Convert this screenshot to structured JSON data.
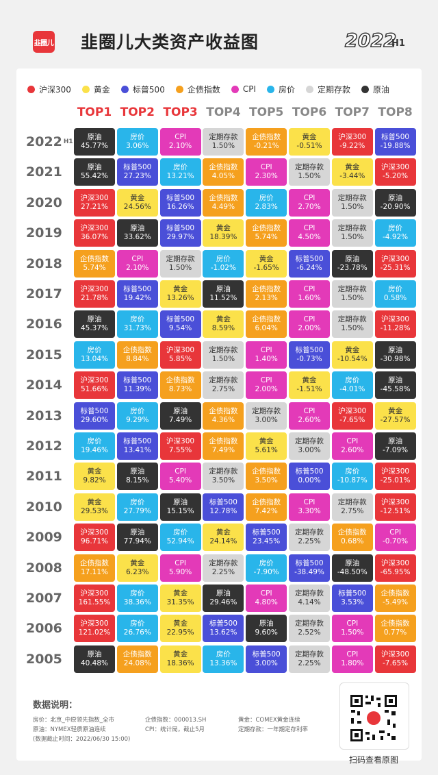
{
  "header": {
    "logo_text": "韭圈儿",
    "title": "韭圈儿大类资产收益图",
    "year": "2022",
    "period": "H1"
  },
  "legend": [
    {
      "name": "沪深300",
      "color": "#e8363a"
    },
    {
      "name": "黄金",
      "color": "#fbe14a"
    },
    {
      "name": "标普500",
      "color": "#4a4fd8"
    },
    {
      "name": "企债指数",
      "color": "#f5a01e"
    },
    {
      "name": "CPI",
      "color": "#e33ab8"
    },
    {
      "name": "房价",
      "color": "#29b5ea"
    },
    {
      "name": "定期存款",
      "color": "#d6d6d6"
    },
    {
      "name": "原油",
      "color": "#333333"
    }
  ],
  "chart_data": {
    "type": "table",
    "title": "韭圈儿大类资产收益图",
    "columns": [
      "TOP1",
      "TOP2",
      "TOP3",
      "TOP4",
      "TOP5",
      "TOP6",
      "TOP7",
      "TOP8"
    ],
    "rows": [
      {
        "year": "2022",
        "suffix": "H1",
        "cells": [
          [
            "原油",
            "45.77%"
          ],
          [
            "房价",
            "3.06%"
          ],
          [
            "CPI",
            "2.10%"
          ],
          [
            "定期存款",
            "1.50%"
          ],
          [
            "企债指数",
            "-0.21%"
          ],
          [
            "黄金",
            "-0.51%"
          ],
          [
            "沪深300",
            "-9.22%"
          ],
          [
            "标普500",
            "-19.88%"
          ]
        ]
      },
      {
        "year": "2021",
        "suffix": "",
        "cells": [
          [
            "原油",
            "55.42%"
          ],
          [
            "标普500",
            "27.23%"
          ],
          [
            "房价",
            "13.21%"
          ],
          [
            "企债指数",
            "4.05%"
          ],
          [
            "CPI",
            "2.30%"
          ],
          [
            "定期存款",
            "1.50%"
          ],
          [
            "黄金",
            "-3.44%"
          ],
          [
            "沪深300",
            "-5.20%"
          ]
        ]
      },
      {
        "year": "2020",
        "suffix": "",
        "cells": [
          [
            "沪深300",
            "27.21%"
          ],
          [
            "黄金",
            "24.56%"
          ],
          [
            "标普500",
            "16.26%"
          ],
          [
            "企债指数",
            "4.49%"
          ],
          [
            "房价",
            "2.83%"
          ],
          [
            "CPI",
            "2.70%"
          ],
          [
            "定期存款",
            "1.50%"
          ],
          [
            "原油",
            "-20.90%"
          ]
        ]
      },
      {
        "year": "2019",
        "suffix": "",
        "cells": [
          [
            "沪深300",
            "36.07%"
          ],
          [
            "原油",
            "33.62%"
          ],
          [
            "标普500",
            "29.97%"
          ],
          [
            "黄金",
            "18.39%"
          ],
          [
            "企债指数",
            "5.74%"
          ],
          [
            "CPI",
            "4.50%"
          ],
          [
            "定期存款",
            "1.50%"
          ],
          [
            "房价",
            "-4.92%"
          ]
        ]
      },
      {
        "year": "2018",
        "suffix": "",
        "cells": [
          [
            "企债指数",
            "5.74%"
          ],
          [
            "CPI",
            "2.10%"
          ],
          [
            "定期存款",
            "1.50%"
          ],
          [
            "房价",
            "-1.02%"
          ],
          [
            "黄金",
            "-1.65%"
          ],
          [
            "标普500",
            "-6.24%"
          ],
          [
            "原油",
            "-23.78%"
          ],
          [
            "沪深300",
            "-25.31%"
          ]
        ]
      },
      {
        "year": "2017",
        "suffix": "",
        "cells": [
          [
            "沪深300",
            "21.78%"
          ],
          [
            "标普500",
            "19.42%"
          ],
          [
            "黄金",
            "13.26%"
          ],
          [
            "原油",
            "11.52%"
          ],
          [
            "企债指数",
            "2.13%"
          ],
          [
            "CPI",
            "1.60%"
          ],
          [
            "定期存款",
            "1.50%"
          ],
          [
            "房价",
            "0.58%"
          ]
        ]
      },
      {
        "year": "2016",
        "suffix": "",
        "cells": [
          [
            "原油",
            "45.37%"
          ],
          [
            "房价",
            "31.73%"
          ],
          [
            "标普500",
            "9.54%"
          ],
          [
            "黄金",
            "8.59%"
          ],
          [
            "企债指数",
            "6.04%"
          ],
          [
            "CPI",
            "2.00%"
          ],
          [
            "定期存款",
            "1.50%"
          ],
          [
            "沪深300",
            "-11.28%"
          ]
        ]
      },
      {
        "year": "2015",
        "suffix": "",
        "cells": [
          [
            "房价",
            "13.04%"
          ],
          [
            "企债指数",
            "8.84%"
          ],
          [
            "沪深300",
            "5.85%"
          ],
          [
            "定期存款",
            "1.50%"
          ],
          [
            "CPI",
            "1.40%"
          ],
          [
            "标普500",
            "-0.73%"
          ],
          [
            "黄金",
            "-10.54%"
          ],
          [
            "原油",
            "-30.98%"
          ]
        ]
      },
      {
        "year": "2014",
        "suffix": "",
        "cells": [
          [
            "沪深300",
            "51.66%"
          ],
          [
            "标普500",
            "11.39%"
          ],
          [
            "企债指数",
            "8.73%"
          ],
          [
            "定期存款",
            "2.75%"
          ],
          [
            "CPI",
            "2.00%"
          ],
          [
            "黄金",
            "-1.51%"
          ],
          [
            "房价",
            "-4.01%"
          ],
          [
            "原油",
            "-45.58%"
          ]
        ]
      },
      {
        "year": "2013",
        "suffix": "",
        "cells": [
          [
            "标普500",
            "29.60%"
          ],
          [
            "房价",
            "9.29%"
          ],
          [
            "原油",
            "7.49%"
          ],
          [
            "企债指数",
            "4.36%"
          ],
          [
            "定期存款",
            "3.00%"
          ],
          [
            "CPI",
            "2.60%"
          ],
          [
            "沪深300",
            "-7.65%"
          ],
          [
            "黄金",
            "-27.57%"
          ]
        ]
      },
      {
        "year": "2012",
        "suffix": "",
        "cells": [
          [
            "房价",
            "19.46%"
          ],
          [
            "标普500",
            "13.41%"
          ],
          [
            "沪深300",
            "7.55%"
          ],
          [
            "企债指数",
            "7.49%"
          ],
          [
            "黄金",
            "5.61%"
          ],
          [
            "定期存款",
            "3.00%"
          ],
          [
            "CPI",
            "2.60%"
          ],
          [
            "原油",
            "-7.09%"
          ]
        ]
      },
      {
        "year": "2011",
        "suffix": "",
        "cells": [
          [
            "黄金",
            "9.82%"
          ],
          [
            "原油",
            "8.15%"
          ],
          [
            "CPI",
            "5.40%"
          ],
          [
            "定期存款",
            "3.50%"
          ],
          [
            "企债指数",
            "3.50%"
          ],
          [
            "标普500",
            "0.00%"
          ],
          [
            "房价",
            "-10.87%"
          ],
          [
            "沪深300",
            "-25.01%"
          ]
        ]
      },
      {
        "year": "2010",
        "suffix": "",
        "cells": [
          [
            "黄金",
            "29.53%"
          ],
          [
            "房价",
            "27.79%"
          ],
          [
            "原油",
            "15.15%"
          ],
          [
            "标普500",
            "12.78%"
          ],
          [
            "企债指数",
            "7.42%"
          ],
          [
            "CPI",
            "3.30%"
          ],
          [
            "定期存款",
            "2.75%"
          ],
          [
            "沪深300",
            "-12.51%"
          ]
        ]
      },
      {
        "year": "2009",
        "suffix": "",
        "cells": [
          [
            "沪深300",
            "96.71%"
          ],
          [
            "原油",
            "77.94%"
          ],
          [
            "房价",
            "52.94%"
          ],
          [
            "黄金",
            "24.14%"
          ],
          [
            "标普500",
            "23.45%"
          ],
          [
            "定期存款",
            "2.25%"
          ],
          [
            "企债指数",
            "0.68%"
          ],
          [
            "CPI",
            "-0.70%"
          ]
        ]
      },
      {
        "year": "2008",
        "suffix": "",
        "cells": [
          [
            "企债指数",
            "17.11%"
          ],
          [
            "黄金",
            "6.23%"
          ],
          [
            "CPI",
            "5.90%"
          ],
          [
            "定期存款",
            "2.25%"
          ],
          [
            "房价",
            "-7.90%"
          ],
          [
            "标普500",
            "-38.49%"
          ],
          [
            "原油",
            "-48.50%"
          ],
          [
            "沪深300",
            "-65.95%"
          ]
        ]
      },
      {
        "year": "2007",
        "suffix": "",
        "cells": [
          [
            "沪深300",
            "161.55%"
          ],
          [
            "房价",
            "38.36%"
          ],
          [
            "黄金",
            "31.35%"
          ],
          [
            "原油",
            "29.46%"
          ],
          [
            "CPI",
            "4.80%"
          ],
          [
            "定期存款",
            "4.14%"
          ],
          [
            "标普500",
            "3.53%"
          ],
          [
            "企债指数",
            "-5.49%"
          ]
        ]
      },
      {
        "year": "2006",
        "suffix": "",
        "cells": [
          [
            "沪深300",
            "121.02%"
          ],
          [
            "房价",
            "26.76%"
          ],
          [
            "黄金",
            "22.95%"
          ],
          [
            "标普500",
            "13.62%"
          ],
          [
            "原油",
            "9.60%"
          ],
          [
            "定期存款",
            "2.52%"
          ],
          [
            "CPI",
            "1.50%"
          ],
          [
            "企债指数",
            "0.77%"
          ]
        ]
      },
      {
        "year": "2005",
        "suffix": "",
        "cells": [
          [
            "原油",
            "40.48%"
          ],
          [
            "企债指数",
            "24.08%"
          ],
          [
            "黄金",
            "18.36%"
          ],
          [
            "房价",
            "13.36%"
          ],
          [
            "标普500",
            "3.00%"
          ],
          [
            "定期存款",
            "2.25%"
          ],
          [
            "CPI",
            "1.80%"
          ],
          [
            "沪深300",
            "-7.65%"
          ]
        ]
      }
    ]
  },
  "notes": {
    "title": "数据说明：",
    "house": "房价：北京_中原领先指数_全市",
    "oil": "原油：NYMEX轻质原油连续",
    "cutoff": "(数据截止时间：2022/06/30 15:00)",
    "bond": "企债指数：000013.SH",
    "cpi": "CPI：统计局，截止5月",
    "gold": "黄金：COMEX黄金连续",
    "deposit": "定期存款：一年期定存利率"
  },
  "qr": {
    "caption": "扫码查看原图"
  },
  "column_colors": [
    "#e8363a",
    "#e8363a",
    "#e8363a",
    "#888888",
    "#888888",
    "#888888",
    "#888888",
    "#888888"
  ]
}
